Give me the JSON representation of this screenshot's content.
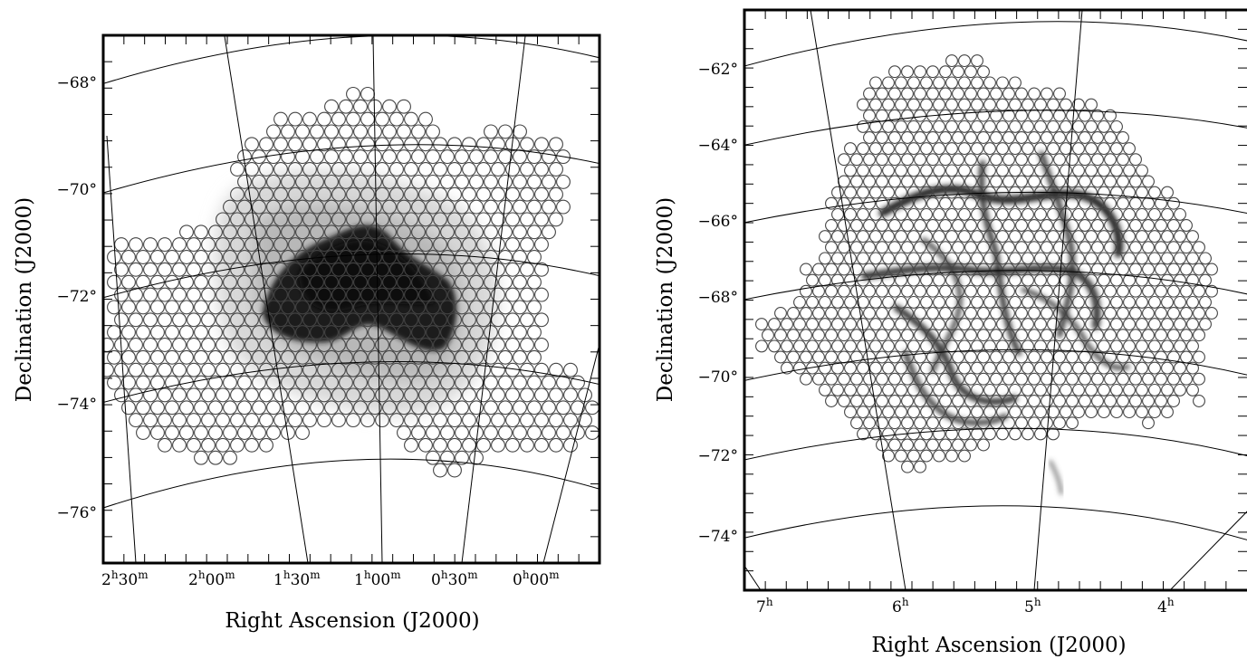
{
  "panels": [
    {
      "id": "left",
      "xlabel": "Right Ascension (J2000)",
      "ylabel": "Declination (J2000)",
      "dec_ticks": [
        "−68°",
        "−70°",
        "−72°",
        "−74°",
        "−76°"
      ],
      "ra_ticks": [
        {
          "h": "2",
          "hu": "h",
          "m": "30",
          "mu": "m"
        },
        {
          "h": "2",
          "hu": "h",
          "m": "00",
          "mu": "m"
        },
        {
          "h": "1",
          "hu": "h",
          "m": "30",
          "mu": "m"
        },
        {
          "h": "1",
          "hu": "h",
          "m": "00",
          "mu": "m"
        },
        {
          "h": "0",
          "hu": "h",
          "m": "30",
          "mu": "m"
        },
        {
          "h": "0",
          "hu": "h",
          "m": "00",
          "mu": "m"
        }
      ]
    },
    {
      "id": "right",
      "xlabel": "Right Ascension (J2000)",
      "ylabel": "Declination (J2000)",
      "dec_ticks": [
        "−62°",
        "−64°",
        "−66°",
        "−68°",
        "−70°",
        "−72°",
        "−74°"
      ],
      "ra_ticks": [
        {
          "h": "7",
          "hu": "h"
        },
        {
          "h": "6",
          "hu": "h"
        },
        {
          "h": "5",
          "hu": "h"
        },
        {
          "h": "4",
          "hu": "h"
        }
      ]
    }
  ]
}
